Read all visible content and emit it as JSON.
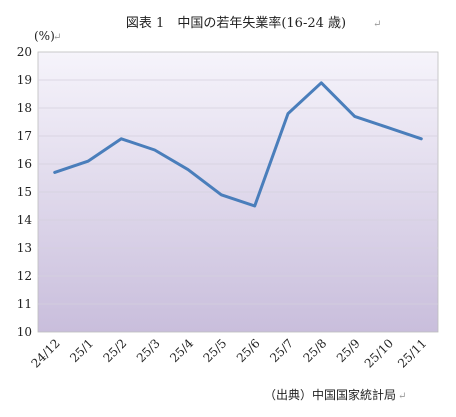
{
  "chart_data": {
    "type": "line",
    "title": "図表 1　中国の若年失業率(16-24 歳)",
    "unit_label": "(%)",
    "source": "（出典）中国国家統計局",
    "categories": [
      "24/12",
      "25/1",
      "25/2",
      "25/3",
      "25/4",
      "25/5",
      "25/6",
      "25/7",
      "25/8",
      "25/9",
      "25/10",
      "25/11"
    ],
    "series": [
      {
        "values": [
          15.7,
          16.1,
          16.9,
          16.5,
          15.8,
          14.9,
          14.5,
          17.8,
          18.9,
          17.7,
          17.3,
          16.9
        ]
      }
    ],
    "ylim": [
      10,
      20
    ],
    "yticks": [
      10,
      11,
      12,
      13,
      14,
      15,
      16,
      17,
      18,
      19,
      20
    ],
    "grid": true,
    "line_color": "#4a7ebb",
    "background_gradient": [
      "#f6f4fb",
      "#c9bedc"
    ]
  }
}
